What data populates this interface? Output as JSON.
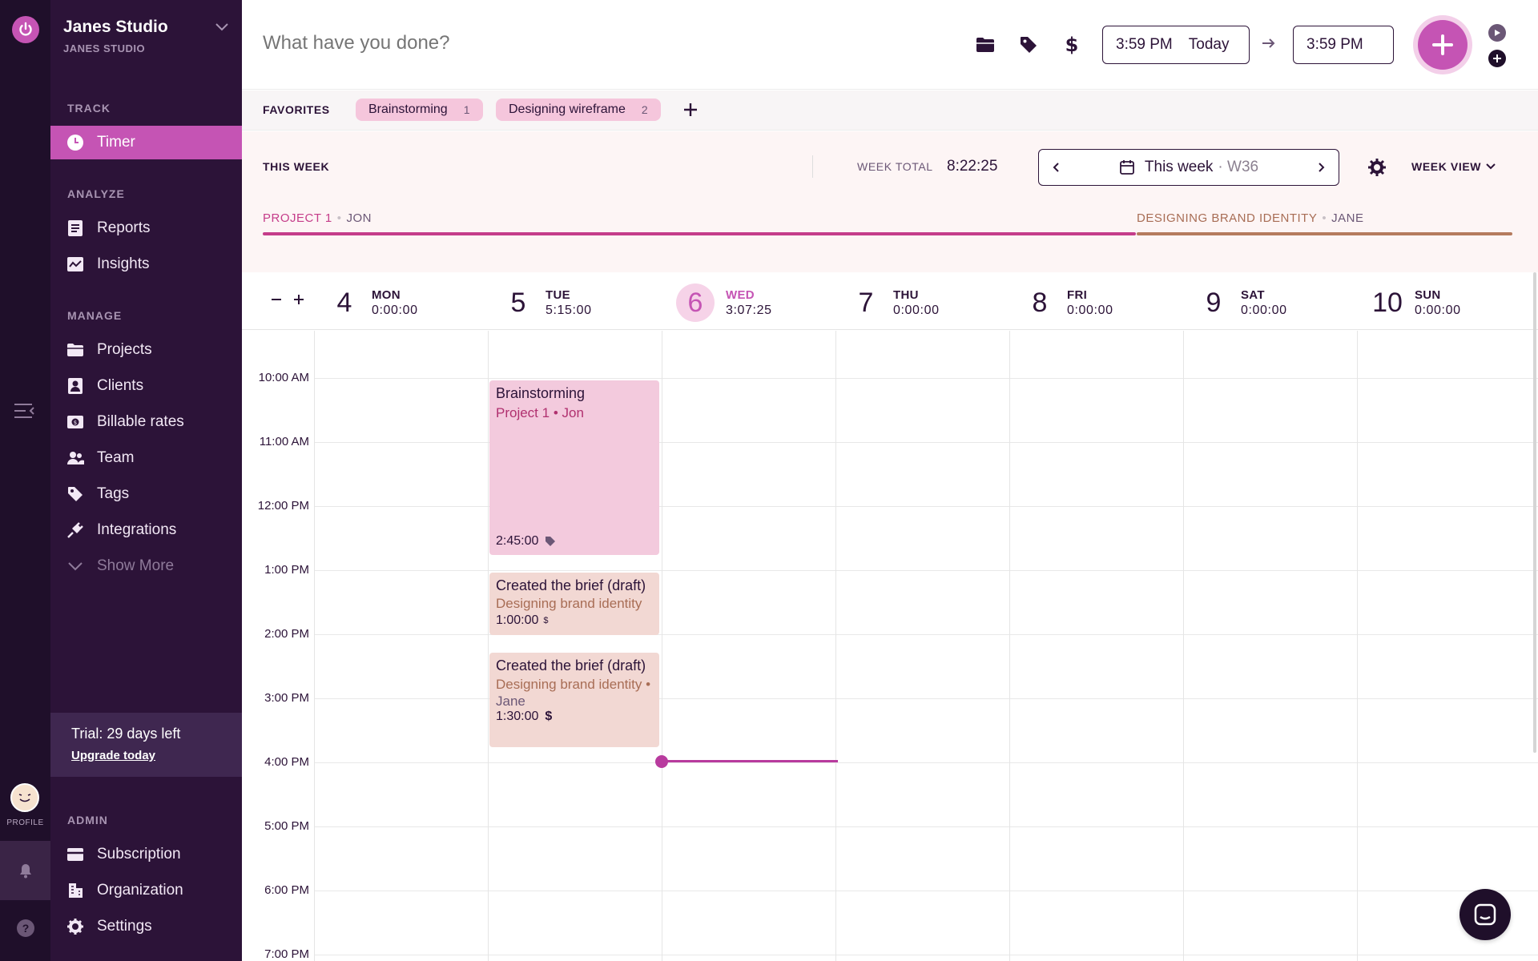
{
  "rail": {
    "profile_label": "PROFILE"
  },
  "sidebar": {
    "workspace_name": "Janes Studio",
    "workspace_sub": "JANES STUDIO",
    "sections": {
      "track": "TRACK",
      "analyze": "ANALYZE",
      "manage": "MANAGE",
      "admin": "ADMIN"
    },
    "items": {
      "timer": "Timer",
      "reports": "Reports",
      "insights": "Insights",
      "projects": "Projects",
      "clients": "Clients",
      "billable_rates": "Billable rates",
      "team": "Team",
      "tags": "Tags",
      "integrations": "Integrations",
      "show_more": "Show More",
      "subscription": "Subscription",
      "organization": "Organization",
      "settings": "Settings"
    },
    "trial": {
      "text": "Trial: 29 days left",
      "link": "Upgrade today"
    }
  },
  "topbar": {
    "description_placeholder": "What have you done?",
    "start_time": "3:59 PM",
    "start_day": "Today",
    "end_time": "3:59 PM"
  },
  "favorites": {
    "label": "FAVORITES",
    "items": [
      {
        "name": "Brainstorming",
        "count": "1"
      },
      {
        "name": "Designing wireframe",
        "count": "2"
      }
    ]
  },
  "week": {
    "label": "THIS WEEK",
    "total_label": "WEEK TOTAL",
    "total_value": "8:22:25",
    "picker_label": "This week",
    "picker_week": "· W36",
    "view_label": "WEEK VIEW",
    "projects": [
      {
        "name": "PROJECT 1",
        "user": "JON",
        "color": "#c53d8a"
      },
      {
        "name": "DESIGNING BRAND IDENTITY",
        "user": "JANE",
        "color": "#b57b5e"
      }
    ]
  },
  "days": [
    {
      "num": "4",
      "name": "MON",
      "total": "0:00:00",
      "today": false
    },
    {
      "num": "5",
      "name": "TUE",
      "total": "5:15:00",
      "today": false
    },
    {
      "num": "6",
      "name": "WED",
      "total": "3:07:25",
      "today": true
    },
    {
      "num": "7",
      "name": "THU",
      "total": "0:00:00",
      "today": false
    },
    {
      "num": "8",
      "name": "FRI",
      "total": "0:00:00",
      "today": false
    },
    {
      "num": "9",
      "name": "SAT",
      "total": "0:00:00",
      "today": false
    },
    {
      "num": "10",
      "name": "SUN",
      "total": "0:00:00",
      "today": false
    }
  ],
  "hours": [
    "10:00 AM",
    "11:00 AM",
    "12:00 PM",
    "1:00 PM",
    "2:00 PM",
    "3:00 PM",
    "4:00 PM",
    "5:00 PM",
    "6:00 PM",
    "7:00 PM"
  ],
  "entries": [
    {
      "title": "Brainstorming",
      "project": "Project 1",
      "user": "Jon",
      "duration": "2:45:00"
    },
    {
      "title": "Created the brief (draft)",
      "project": "Designing brand identity",
      "user": "",
      "duration": "1:00:00"
    },
    {
      "title": "Created the brief (draft)",
      "project": "Designing brand identity",
      "user": "Jane",
      "duration": "1:30:00"
    }
  ],
  "colors": {
    "accent": "#c554b4",
    "sidebar_bg": "#2c1338",
    "rail_bg": "#1f0f2a",
    "project1": "#c53d8a",
    "brand_identity": "#b57b5e"
  }
}
